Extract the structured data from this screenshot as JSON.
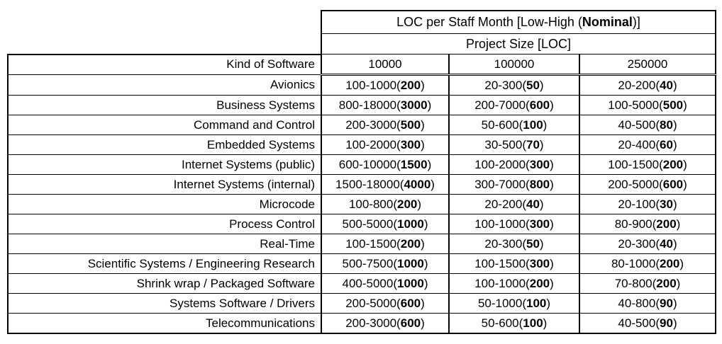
{
  "chart_data": {
    "type": "table",
    "title_pre": "LOC per Staff Month [Low-High (",
    "title_bold": "Nominal",
    "title_post": ")]",
    "subtitle": "Project Size [LOC]",
    "corner_label": "Kind of Software",
    "columns": [
      "10000",
      "100000",
      "250000"
    ],
    "rows": [
      {
        "label": "Avionics",
        "cells": [
          {
            "pre": "100-1000(",
            "nominal": "200",
            "post": ")"
          },
          {
            "pre": "20-300(",
            "nominal": "50",
            "post": ")"
          },
          {
            "pre": "20-200(",
            "nominal": "40",
            "post": ")"
          }
        ]
      },
      {
        "label": "Business Systems",
        "cells": [
          {
            "pre": "800-18000(",
            "nominal": "3000",
            "post": ")"
          },
          {
            "pre": "200-7000(",
            "nominal": "600",
            "post": ")"
          },
          {
            "pre": "100-5000(",
            "nominal": "500",
            "post": ")"
          }
        ]
      },
      {
        "label": "Command and Control",
        "cells": [
          {
            "pre": "200-3000(",
            "nominal": "500",
            "post": ")"
          },
          {
            "pre": "50-600(",
            "nominal": "100",
            "post": ")"
          },
          {
            "pre": "40-500(",
            "nominal": "80",
            "post": ")"
          }
        ]
      },
      {
        "label": "Embedded Systems",
        "cells": [
          {
            "pre": "100-2000(",
            "nominal": "300",
            "post": ")"
          },
          {
            "pre": "30-500(",
            "nominal": "70",
            "post": ")"
          },
          {
            "pre": "20-400(",
            "nominal": "60",
            "post": ")"
          }
        ]
      },
      {
        "label": "Internet Systems (public)",
        "cells": [
          {
            "pre": "600-10000(",
            "nominal": "1500",
            "post": ")"
          },
          {
            "pre": "100-2000(",
            "nominal": "300",
            "post": ")"
          },
          {
            "pre": "100-1500(",
            "nominal": "200",
            "post": ")"
          }
        ]
      },
      {
        "label": "Internet Systems (internal)",
        "cells": [
          {
            "pre": "1500-18000(",
            "nominal": "4000",
            "post": ")"
          },
          {
            "pre": "300-7000(",
            "nominal": "800",
            "post": ")"
          },
          {
            "pre": "200-5000(",
            "nominal": "600",
            "post": ")"
          }
        ]
      },
      {
        "label": "Microcode",
        "cells": [
          {
            "pre": "100-800(",
            "nominal": "200",
            "post": ")"
          },
          {
            "pre": "20-200(",
            "nominal": "40",
            "post": ")"
          },
          {
            "pre": "20-100(",
            "nominal": "30",
            "post": ")"
          }
        ]
      },
      {
        "label": "Process Control",
        "cells": [
          {
            "pre": "500-5000(",
            "nominal": "1000",
            "post": ")"
          },
          {
            "pre": "100-1000(",
            "nominal": "300",
            "post": ")"
          },
          {
            "pre": "80-900(",
            "nominal": "200",
            "post": ")"
          }
        ]
      },
      {
        "label": "Real-Time",
        "cells": [
          {
            "pre": "100-1500(",
            "nominal": "200",
            "post": ")"
          },
          {
            "pre": "20-300(",
            "nominal": "50",
            "post": ")"
          },
          {
            "pre": "20-300(",
            "nominal": "40",
            "post": ")"
          }
        ]
      },
      {
        "label": "Scientific Systems / Engineering Research",
        "cells": [
          {
            "pre": "500-7500(",
            "nominal": "1000",
            "post": ")"
          },
          {
            "pre": "100-1500(",
            "nominal": "300",
            "post": ")"
          },
          {
            "pre": "80-1000(",
            "nominal": "200",
            "post": ")"
          }
        ]
      },
      {
        "label": "Shrink wrap / Packaged Software",
        "cells": [
          {
            "pre": "400-5000(",
            "nominal": "1000",
            "post": ")"
          },
          {
            "pre": "100-1000(",
            "nominal": "200",
            "post": ")"
          },
          {
            "pre": "70-800(",
            "nominal": "200",
            "post": ")"
          }
        ]
      },
      {
        "label": "Systems Software / Drivers",
        "cells": [
          {
            "pre": "200-5000(",
            "nominal": "600",
            "post": ")"
          },
          {
            "pre": "50-1000(",
            "nominal": "100",
            "post": ")"
          },
          {
            "pre": "40-800(",
            "nominal": "90",
            "post": ")"
          }
        ]
      },
      {
        "label": "Telecommunications",
        "cells": [
          {
            "pre": "200-3000(",
            "nominal": "600",
            "post": ")"
          },
          {
            "pre": "50-600(",
            "nominal": "100",
            "post": ")"
          },
          {
            "pre": "40-500(",
            "nominal": "90",
            "post": ")"
          }
        ]
      }
    ]
  }
}
